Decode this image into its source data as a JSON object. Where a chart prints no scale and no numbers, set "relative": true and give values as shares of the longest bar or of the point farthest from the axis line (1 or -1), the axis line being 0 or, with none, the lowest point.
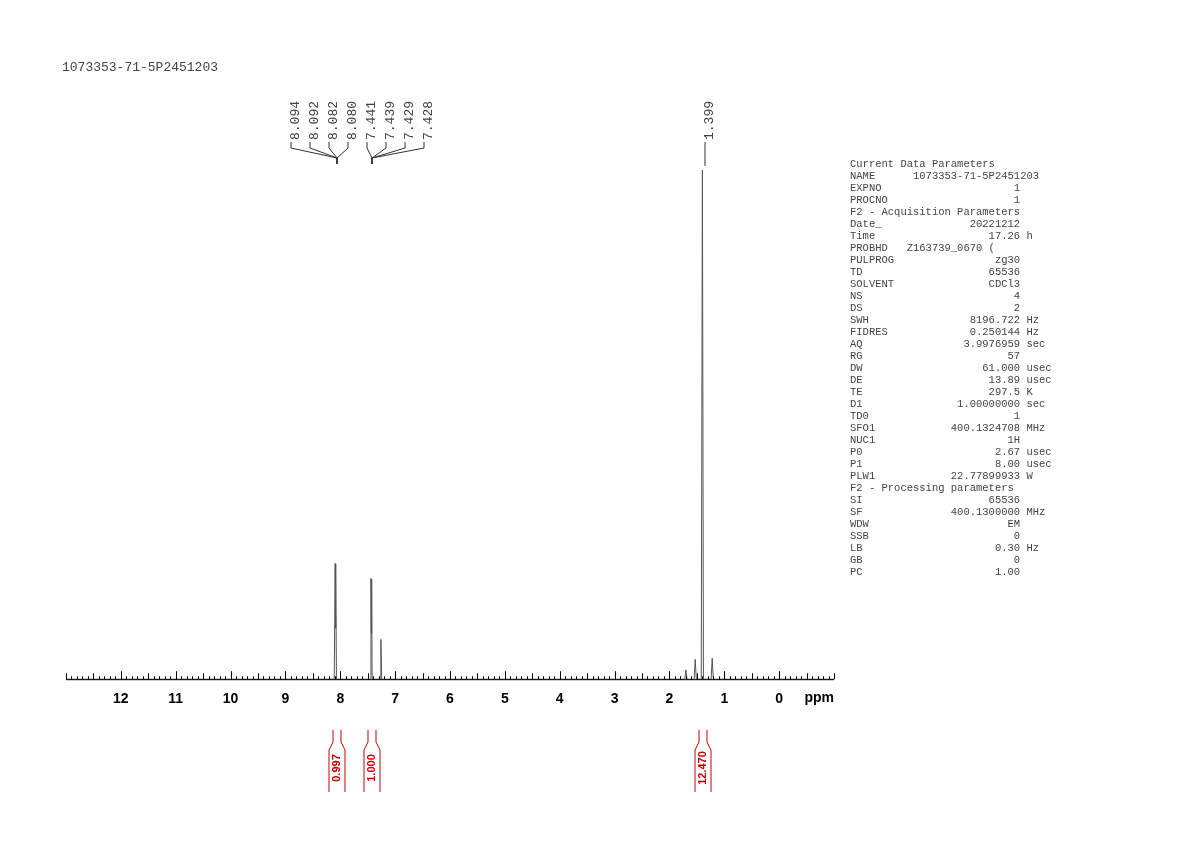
{
  "chart_data": {
    "type": "line",
    "title": "1073353-71-5P2451203",
    "xlabel": "ppm",
    "relative": true,
    "color": "#555555",
    "legend": false,
    "grid": false,
    "marker": "none",
    "x": [
      13,
      8.11,
      8.094,
      8.087,
      8.08,
      8.07,
      7.45,
      7.441,
      7.434,
      7.428,
      7.42,
      7.275,
      7.26,
      7.245,
      1.72,
      1.7,
      1.68,
      1.55,
      1.53,
      1.51,
      1.42,
      1.399,
      1.38,
      1.24,
      1.22,
      1.2,
      -1
    ],
    "values": [
      0,
      0,
      0.227,
      0.1,
      0.225,
      0,
      0,
      0.198,
      0.09,
      0.196,
      0,
      0,
      0.078,
      0,
      0,
      0.018,
      0,
      0,
      0.039,
      0,
      0,
      1,
      0,
      0,
      0.041,
      0,
      0
    ],
    "xlim": [
      13,
      -1
    ],
    "xticks": [
      12,
      11,
      10,
      9,
      8,
      7,
      6,
      5,
      4,
      3,
      2,
      1,
      0
    ],
    "annotations": [
      "8.094",
      "8.092",
      "8.082",
      "8.080",
      "7.441",
      "7.439",
      "7.429",
      "7.428",
      "1.399",
      "0.997",
      "1.000",
      "12.470",
      "Current Data Parameters",
      "NAME      1073353-71-5P2451203",
      "EXPNO                     1",
      "PROCNO                    1",
      "F2 - Acquisition Parameters",
      "Date_              20221212",
      "Time                  17.26 h",
      "PROBHD   Z163739_0670 (",
      "PULPROG                zg30",
      "TD                    65536",
      "SOLVENT               CDCl3",
      "NS                        4",
      "DS                        2",
      "SWH                8196.722 Hz",
      "FIDRES             0.250144 Hz",
      "AQ                3.9976959 sec",
      "RG                       57",
      "DW                   61.000 usec",
      "DE                    13.89 usec",
      "TE                    297.5 K",
      "D1               1.00000000 sec",
      "TD0                       1",
      "SFO1            400.1324708 MHz",
      "NUC1                     1H",
      "P0                     2.67 usec",
      "P1                     8.00 usec",
      "PLW1            22.77899933 W",
      "F2 - Processing parameters",
      "SI                    65536",
      "SF              400.1300000 MHz",
      "WDW                      EM",
      "SSB                       0",
      "LB                     0.30 Hz",
      "GB                        0",
      "PC                     1.00"
    ]
  }
}
